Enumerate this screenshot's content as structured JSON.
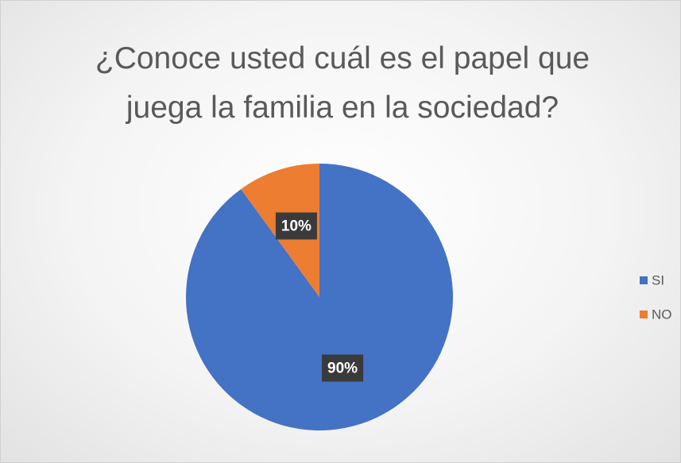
{
  "chart_data": {
    "type": "pie",
    "title": "¿Conoce usted cuál es el papel que juega la familia en la sociedad?",
    "categories": [
      "SI",
      "NO"
    ],
    "values": [
      90,
      10
    ],
    "value_labels": [
      "90%",
      "10%"
    ],
    "colors": [
      "#4472c4",
      "#ed7d31"
    ],
    "legend": "right"
  }
}
